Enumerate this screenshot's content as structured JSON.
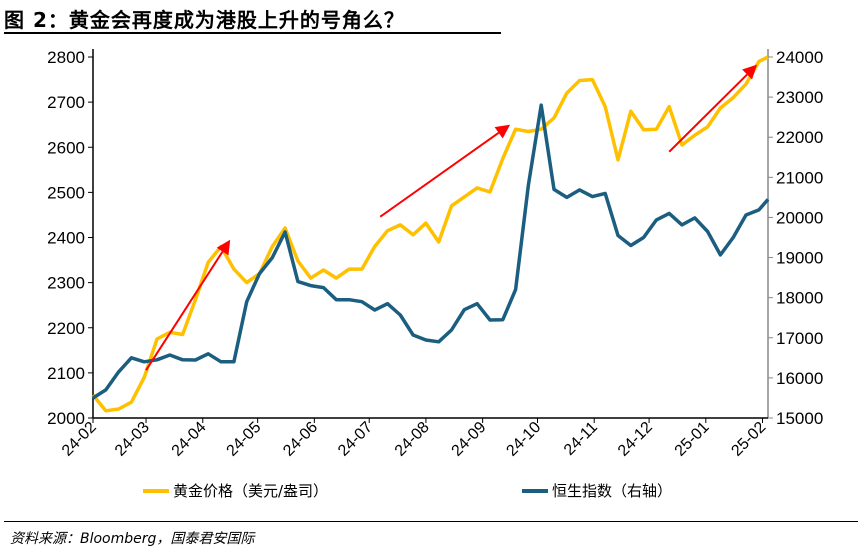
{
  "title": "图 2：黄金会再度成为港股上升的号角么？",
  "source": "资料来源：Bloomberg，国泰君安国际",
  "chart_data": {
    "type": "line",
    "title": "图 2：黄金会再度成为港股上升的号角么？",
    "xlim": [
      "2024-02-01",
      "2025-02-04"
    ],
    "x_ticks": [
      {
        "date": "2024-02-01",
        "label": "24-02"
      },
      {
        "date": "2024-03-01",
        "label": "24-03"
      },
      {
        "date": "2024-04-01",
        "label": "24-04"
      },
      {
        "date": "2024-05-01",
        "label": "24-05"
      },
      {
        "date": "2024-06-01",
        "label": "24-06"
      },
      {
        "date": "2024-07-01",
        "label": "24-07"
      },
      {
        "date": "2024-08-01",
        "label": "24-08"
      },
      {
        "date": "2024-09-01",
        "label": "24-09"
      },
      {
        "date": "2024-10-01",
        "label": "24-10"
      },
      {
        "date": "2024-11-01",
        "label": "24-11"
      },
      {
        "date": "2024-12-01",
        "label": "24-12"
      },
      {
        "date": "2025-01-01",
        "label": "25-01"
      },
      {
        "date": "2025-02-01",
        "label": "25-02"
      }
    ],
    "y_left": {
      "ylim": [
        2000,
        2800
      ],
      "ticks": [
        2000,
        2100,
        2200,
        2300,
        2400,
        2500,
        2600,
        2700,
        2800
      ]
    },
    "y_right": {
      "ylim": [
        15000,
        24000
      ],
      "ticks": [
        15000,
        16000,
        17000,
        18000,
        19000,
        20000,
        21000,
        22000,
        23000,
        24000
      ]
    },
    "grid": false,
    "legend_position": "bottom",
    "x": [
      "2024-02-01",
      "2024-02-08",
      "2024-02-15",
      "2024-02-22",
      "2024-02-29",
      "2024-03-07",
      "2024-03-14",
      "2024-03-21",
      "2024-03-28",
      "2024-04-04",
      "2024-04-11",
      "2024-04-18",
      "2024-04-25",
      "2024-05-02",
      "2024-05-09",
      "2024-05-16",
      "2024-05-23",
      "2024-05-30",
      "2024-06-06",
      "2024-06-13",
      "2024-06-20",
      "2024-06-27",
      "2024-07-04",
      "2024-07-11",
      "2024-07-18",
      "2024-07-25",
      "2024-08-01",
      "2024-08-08",
      "2024-08-15",
      "2024-08-22",
      "2024-08-29",
      "2024-09-05",
      "2024-09-12",
      "2024-09-19",
      "2024-09-26",
      "2024-10-03",
      "2024-10-10",
      "2024-10-17",
      "2024-10-24",
      "2024-10-31",
      "2024-11-07",
      "2024-11-14",
      "2024-11-21",
      "2024-11-28",
      "2024-12-05",
      "2024-12-12",
      "2024-12-19",
      "2024-12-26",
      "2025-01-02",
      "2025-01-09",
      "2025-01-16",
      "2025-01-23",
      "2025-01-30",
      "2025-02-04"
    ],
    "series": [
      {
        "name": "黄金价格（美元/盎司）",
        "axis": "left",
        "color": "#FFC000",
        "values": [
          2051,
          2016,
          2020,
          2035,
          2090,
          2175,
          2190,
          2185,
          2262,
          2345,
          2380,
          2330,
          2300,
          2320,
          2380,
          2421,
          2348,
          2310,
          2328,
          2310,
          2330,
          2330,
          2380,
          2415,
          2428,
          2406,
          2432,
          2390,
          2470,
          2490,
          2510,
          2501,
          2575,
          2640,
          2635,
          2640,
          2665,
          2720,
          2748,
          2750,
          2690,
          2572,
          2680,
          2639,
          2640,
          2690,
          2605,
          2627,
          2645,
          2687,
          2710,
          2740,
          2790,
          2800
        ]
      },
      {
        "name": "恒生指数（右轴）",
        "axis": "right",
        "color": "#1B5E80",
        "values": [
          15499,
          15700,
          16150,
          16500,
          16400,
          16450,
          16571,
          16450,
          16446,
          16600,
          16400,
          16400,
          17900,
          18600,
          19000,
          19638,
          18400,
          18300,
          18250,
          17950,
          17950,
          17900,
          17693,
          17850,
          17569,
          17070,
          16945,
          16900,
          17195,
          17700,
          17850,
          17444,
          17450,
          18200,
          20810,
          22800,
          20700,
          20500,
          20686,
          20520,
          20600,
          19550,
          19300,
          19500,
          19938,
          20100,
          19813,
          19988,
          19650,
          19065,
          19500,
          20062,
          20187,
          20450
        ]
      }
    ],
    "annotations": [
      {
        "type": "arrow",
        "color": "#FF0000",
        "from": {
          "date": "2024-03-01",
          "value": 2106
        },
        "to": {
          "date": "2024-04-16",
          "value": 2395
        }
      },
      {
        "type": "arrow",
        "color": "#FF0000",
        "from": {
          "date": "2024-07-07",
          "value": 2446
        },
        "to": {
          "date": "2024-09-16",
          "value": 2650
        }
      },
      {
        "type": "arrow",
        "color": "#FF0000",
        "from": {
          "date": "2024-12-12",
          "value": 2590
        },
        "to": {
          "date": "2025-01-29",
          "value": 2783
        }
      }
    ]
  }
}
